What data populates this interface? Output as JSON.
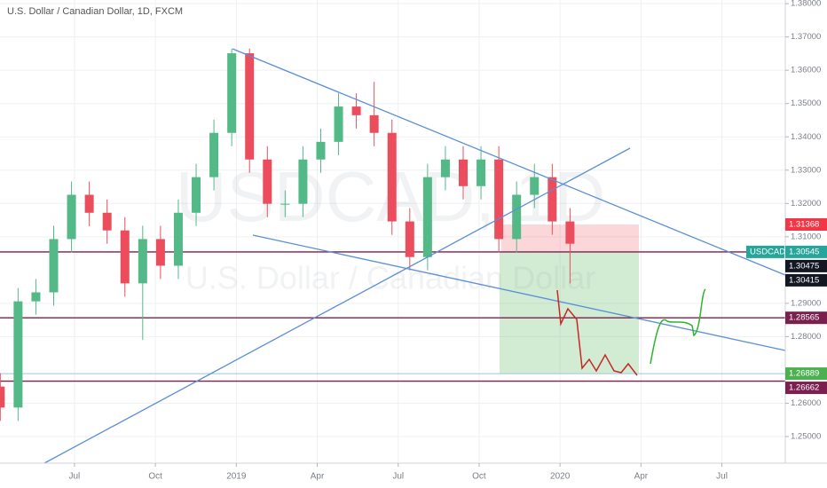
{
  "chart_data": {
    "type": "candlestick",
    "title": "U.S. Dollar / Canadian Dollar, 1D, FXCM",
    "watermark": "USDCAD, 1D",
    "watermark_subtitle": "U.S. Dollar / Canadian Dollar",
    "up_color": "#53b987",
    "down_color": "#eb4d5c",
    "x": [
      3.25,
      3.91,
      4.57,
      5.23,
      5.89,
      6.55,
      7.21,
      7.87,
      8.53,
      9.19,
      9.85,
      10.51,
      11.17,
      11.83,
      12.49,
      13.15,
      13.81,
      14.47,
      15.13,
      15.79,
      16.45,
      17.11,
      17.77,
      18.43,
      19.09,
      19.75,
      20.41,
      21.07,
      21.73,
      22.39,
      23.05,
      23.71,
      24.37
    ],
    "open": [
      1.265,
      1.2587,
      1.2906,
      1.2933,
      1.3093,
      1.3226,
      1.3172,
      1.3119,
      1.296,
      1.3093,
      1.3013,
      1.3172,
      1.3279,
      1.3412,
      1.3651,
      1.3332,
      1.3199,
      1.3199,
      1.3332,
      1.3385,
      1.3491,
      1.3465,
      1.3412,
      1.3146,
      1.3039,
      1.3279,
      1.3332,
      1.3252,
      1.3332,
      1.3093,
      1.3226,
      1.3279,
      1.3146
    ],
    "high": [
      1.269,
      1.2946,
      1.2973,
      1.3133,
      1.3266,
      1.3266,
      1.3212,
      1.3159,
      1.3133,
      1.3133,
      1.3212,
      1.3319,
      1.3452,
      1.3665,
      1.3665,
      1.3372,
      1.3239,
      1.3372,
      1.3425,
      1.3531,
      1.3531,
      1.3565,
      1.3452,
      1.3186,
      1.3319,
      1.3372,
      1.3372,
      1.3372,
      1.3372,
      1.3266,
      1.3319,
      1.3319,
      1.3186
    ],
    "low": [
      1.2547,
      1.2547,
      1.2866,
      1.2893,
      1.3053,
      1.3132,
      1.3079,
      1.292,
      1.279,
      1.2973,
      1.2973,
      1.3132,
      1.3239,
      1.3372,
      1.3292,
      1.3159,
      1.3159,
      1.3159,
      1.3292,
      1.3345,
      1.3425,
      1.3372,
      1.3106,
      1.2999,
      1.2999,
      1.3239,
      1.3212,
      1.3212,
      1.3053,
      1.3053,
      1.3186,
      1.3106,
      1.296
    ],
    "close": [
      1.2587,
      1.2906,
      1.2933,
      1.3093,
      1.3226,
      1.3172,
      1.3119,
      1.296,
      1.3093,
      1.3013,
      1.3172,
      1.3279,
      1.3412,
      1.3651,
      1.3332,
      1.3199,
      1.3199,
      1.3332,
      1.3385,
      1.3491,
      1.3465,
      1.3412,
      1.3146,
      1.3039,
      1.3279,
      1.3332,
      1.3252,
      1.3332,
      1.3093,
      1.3226,
      1.3279,
      1.3146,
      1.3079
    ],
    "xlim": [
      3.24,
      32.35
    ],
    "xticks": [
      {
        "value": 6,
        "label": "Jul"
      },
      {
        "value": 9,
        "label": "Oct"
      },
      {
        "value": 12,
        "label": "2019"
      },
      {
        "value": 15,
        "label": "Apr"
      },
      {
        "value": 18,
        "label": "Jul"
      },
      {
        "value": 21,
        "label": "Oct"
      },
      {
        "value": 24,
        "label": "2020"
      },
      {
        "value": 27,
        "label": "Apr"
      },
      {
        "value": 30,
        "label": "Jul"
      }
    ],
    "ylim": [
      1.242,
      1.3811
    ],
    "yticks": [
      {
        "value": 1.38,
        "label": "1.38000"
      },
      {
        "value": 1.37,
        "label": "1.37000"
      },
      {
        "value": 1.36,
        "label": "1.36000"
      },
      {
        "value": 1.35,
        "label": "1.35000"
      },
      {
        "value": 1.34,
        "label": "1.34000"
      },
      {
        "value": 1.33,
        "label": "1.33000"
      },
      {
        "value": 1.32,
        "label": "1.32000"
      },
      {
        "value": 1.31,
        "label": "1.31000"
      },
      {
        "value": 1.29,
        "label": "1.29000"
      },
      {
        "value": 1.28,
        "label": "1.28000"
      },
      {
        "value": 1.26,
        "label": "1.26000"
      },
      {
        "value": 1.25,
        "label": "1.25000"
      }
    ],
    "grid": true,
    "price_labels": [
      {
        "value": 1.31368,
        "label": "1.31368",
        "color": "#f23645"
      },
      {
        "value": 1.30545,
        "label": "1.30545",
        "tag": "USDCAD",
        "color": "#26a69a",
        "line_color": "#7b1f4f"
      },
      {
        "value": 1.30475,
        "label": "1.30475",
        "color": "#131722"
      },
      {
        "value": 1.30415,
        "label": "1.30415",
        "color": "#131722"
      },
      {
        "value": 1.28565,
        "label": "1.28565",
        "color": "#7b1f4f",
        "line_color": "#7b1f4f"
      },
      {
        "value": 1.26889,
        "label": "1.26889",
        "color": "#4caf50",
        "line_color": "#9fc3e3"
      },
      {
        "value": 1.26662,
        "label": "1.26662",
        "color": "#7b1f4f",
        "line_color": "#7b1f4f"
      }
    ]
  }
}
